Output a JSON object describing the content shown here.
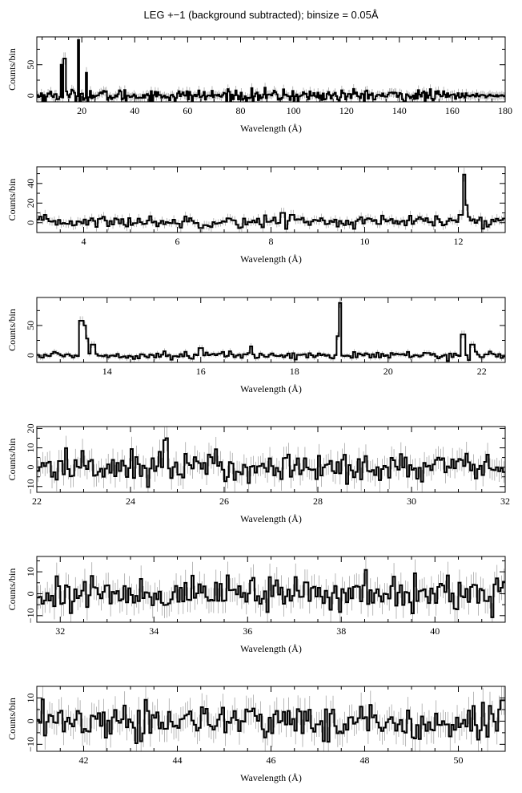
{
  "title": "LEG +−1 (background subtracted); binsize = 0.05Å",
  "chart_data": [
    {
      "type": "line",
      "style": "step-histogram",
      "xlabel": "Wavelength (Å)",
      "ylabel": "Counts/bin",
      "xlim": [
        3,
        180
      ],
      "ylim": [
        -10,
        95
      ],
      "xticks": [
        20,
        40,
        60,
        80,
        100,
        120,
        140,
        160,
        180
      ],
      "yticks": [
        0,
        50
      ],
      "noise": 5,
      "peaks": [
        [
          12.1,
          50
        ],
        [
          13.5,
          60
        ],
        [
          18.97,
          90
        ],
        [
          21.6,
          37
        ]
      ]
    },
    {
      "type": "line",
      "style": "step-histogram",
      "xlabel": "Wavelength (Å)",
      "ylabel": "Counts/bin",
      "xlim": [
        3,
        13
      ],
      "ylim": [
        -10,
        57
      ],
      "xticks": [
        4,
        6,
        8,
        10,
        12
      ],
      "yticks": [
        0,
        20,
        40
      ],
      "noise": 3,
      "peaks": [
        [
          12.12,
          49
        ],
        [
          12.17,
          18
        ],
        [
          12.05,
          8
        ],
        [
          8.25,
          10
        ],
        [
          8.45,
          8
        ]
      ]
    },
    {
      "type": "line",
      "style": "step-histogram",
      "xlabel": "Wavelength (Å)",
      "ylabel": "Counts/bin",
      "xlim": [
        12.5,
        22.5
      ],
      "ylim": [
        -12,
        97
      ],
      "xticks": [
        14,
        16,
        18,
        20,
        22
      ],
      "yticks": [
        0,
        50
      ],
      "noise": 3,
      "peaks": [
        [
          13.45,
          58
        ],
        [
          13.52,
          50
        ],
        [
          13.58,
          28
        ],
        [
          13.7,
          18
        ],
        [
          18.97,
          88
        ],
        [
          18.92,
          32
        ],
        [
          21.6,
          35
        ],
        [
          21.8,
          18
        ],
        [
          16.0,
          12
        ],
        [
          17.07,
          15
        ]
      ]
    },
    {
      "type": "line",
      "style": "step-histogram",
      "xlabel": "Wavelength (Å)",
      "ylabel": "Counts/bin",
      "xlim": [
        22,
        32
      ],
      "ylim": [
        -13,
        21
      ],
      "xticks": [
        22,
        24,
        26,
        28,
        30,
        32
      ],
      "yticks": [
        -10,
        0,
        10,
        20
      ],
      "noise": 4,
      "peaks": [
        [
          24.78,
          15
        ],
        [
          24.72,
          14
        ],
        [
          24.62,
          8
        ]
      ]
    },
    {
      "type": "line",
      "style": "step-histogram",
      "xlabel": "Wavelength (Å)",
      "ylabel": "Counts/bin",
      "xlim": [
        31.5,
        41.5
      ],
      "ylim": [
        -13,
        17
      ],
      "xticks": [
        32,
        34,
        36,
        38,
        40
      ],
      "yticks": [
        -10,
        0,
        10
      ],
      "noise": 4,
      "peaks": []
    },
    {
      "type": "line",
      "style": "step-histogram",
      "xlabel": "Wavelength (Å)",
      "ylabel": "Counts/bin",
      "xlim": [
        41,
        51
      ],
      "ylim": [
        -13,
        15
      ],
      "xticks": [
        42,
        44,
        46,
        48,
        50
      ],
      "yticks": [
        -10,
        0,
        10
      ],
      "noise": 4,
      "peaks": [
        [
          50.95,
          9
        ]
      ]
    }
  ]
}
